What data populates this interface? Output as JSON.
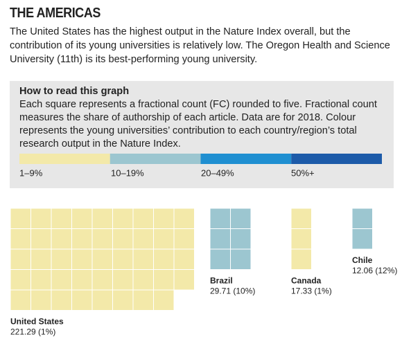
{
  "title": "THE AMERICAS",
  "intro": "The United States has the highest output in the Nature Index overall, but the contribution of its young universities is relatively low. The Oregon Health and Science University (11th) is its best-performing young university.",
  "guide": {
    "heading": "How to read this graph",
    "text": "Each square represents a fractional count (FC) rounded to five. Fractional count measures the share of authorship of each article. Data are for 2018. Colour represents the young universities’ contribution to each country/region’s total research output in the Nature Index."
  },
  "chart_data": {
    "type": "waffle",
    "bands": [
      {
        "label": "1–9%",
        "min": 1,
        "color": "#f3e9a9"
      },
      {
        "label": "10–19%",
        "min": 10,
        "color": "#9cc6d0"
      },
      {
        "label": "20–49%",
        "min": 20,
        "color": "#1f8fd1"
      },
      {
        "label": "50%+",
        "min": 50,
        "color": "#1d5ba9"
      }
    ],
    "categories": [
      "United States",
      "Brazil",
      "Canada",
      "Chile"
    ],
    "values": [
      221.29,
      29.71,
      17.33,
      12.06
    ],
    "shares": [
      1,
      10,
      1,
      12
    ],
    "value_labels": [
      "221.29 (1%)",
      "29.71 (10%)",
      "17.33 (1%)",
      "12.06 (12%)"
    ],
    "squares": [
      44,
      6,
      3,
      2
    ]
  }
}
